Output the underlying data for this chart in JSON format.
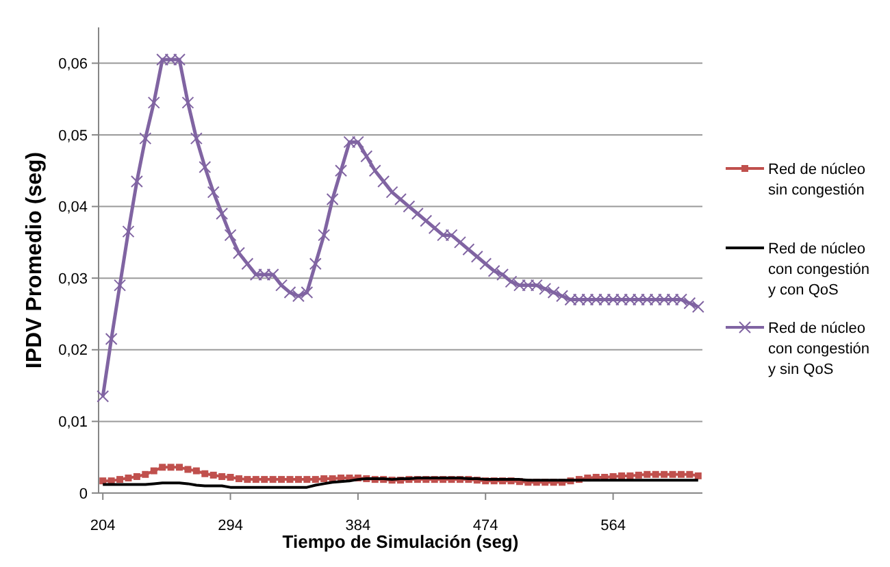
{
  "chart_data": {
    "type": "line",
    "xlabel": "Tiempo de Simulación  (seg)",
    "ylabel": "IPDV Promedio (seg)",
    "x": [
      204,
      210,
      216,
      222,
      228,
      234,
      240,
      246,
      252,
      258,
      264,
      270,
      276,
      282,
      288,
      294,
      300,
      306,
      312,
      318,
      324,
      330,
      336,
      342,
      348,
      354,
      360,
      366,
      372,
      378,
      384,
      390,
      396,
      402,
      408,
      414,
      420,
      426,
      432,
      438,
      444,
      450,
      456,
      462,
      468,
      474,
      480,
      486,
      492,
      498,
      504,
      510,
      516,
      522,
      528,
      534,
      540,
      546,
      552,
      558,
      564,
      570,
      576,
      582,
      588,
      594,
      600,
      606,
      612,
      618,
      624
    ],
    "xlim": [
      201,
      627
    ],
    "xticks": [
      204,
      294,
      384,
      474,
      564
    ],
    "ylim": [
      0,
      0.065
    ],
    "yticks": [
      0,
      {
        "value": 0.01,
        "label": "0,01"
      },
      {
        "value": 0.02,
        "label": "0,02"
      },
      {
        "value": 0.03,
        "label": "0,03"
      },
      {
        "value": 0.04,
        "label": "0,04"
      },
      {
        "value": 0.05,
        "label": "0,05"
      },
      {
        "value": 0.06,
        "label": "0,06"
      }
    ],
    "grid": "y",
    "legend": "right",
    "series": [
      {
        "name": "Red de núcleo sin congestión",
        "color": "#c0504d",
        "marker": "square",
        "values": [
          0.0017,
          0.0017,
          0.0019,
          0.0021,
          0.0023,
          0.0026,
          0.0031,
          0.0036,
          0.0036,
          0.0036,
          0.0033,
          0.0031,
          0.0027,
          0.0025,
          0.0023,
          0.0022,
          0.002,
          0.0019,
          0.0019,
          0.0019,
          0.0019,
          0.0019,
          0.0019,
          0.0019,
          0.0019,
          0.0019,
          0.002,
          0.002,
          0.0021,
          0.0021,
          0.0021,
          0.002,
          0.0019,
          0.0019,
          0.0018,
          0.0018,
          0.0019,
          0.0019,
          0.0019,
          0.0019,
          0.0019,
          0.0019,
          0.0019,
          0.0019,
          0.0018,
          0.0017,
          0.0017,
          0.0017,
          0.0017,
          0.0016,
          0.0015,
          0.0015,
          0.0015,
          0.0015,
          0.0015,
          0.0017,
          0.0019,
          0.0021,
          0.0022,
          0.0022,
          0.0023,
          0.0024,
          0.0024,
          0.0025,
          0.0026,
          0.0026,
          0.0026,
          0.0026,
          0.0026,
          0.0026,
          0.0024
        ]
      },
      {
        "name": "Red de núcleo con congestión y con QoS",
        "color": "#000000",
        "marker": "none",
        "values": [
          0.0012,
          0.0012,
          0.0012,
          0.0012,
          0.0012,
          0.0012,
          0.0013,
          0.0014,
          0.0014,
          0.0014,
          0.0013,
          0.0011,
          0.001,
          0.001,
          0.001,
          0.0008,
          0.0008,
          0.0008,
          0.0008,
          0.0008,
          0.0008,
          0.0008,
          0.0008,
          0.0008,
          0.0008,
          0.0011,
          0.0013,
          0.0015,
          0.0016,
          0.0017,
          0.0019,
          0.002,
          0.002,
          0.002,
          0.0019,
          0.002,
          0.002,
          0.0021,
          0.0021,
          0.0021,
          0.0021,
          0.0021,
          0.0021,
          0.002,
          0.002,
          0.0019,
          0.0019,
          0.0019,
          0.0019,
          0.0019,
          0.0018,
          0.0018,
          0.0018,
          0.0018,
          0.0018,
          0.0018,
          0.0018,
          0.0018,
          0.0018,
          0.0018,
          0.0018,
          0.0018,
          0.0018,
          0.0018,
          0.0018,
          0.0018,
          0.0018,
          0.0018,
          0.0018,
          0.0018,
          0.0018
        ]
      },
      {
        "name": "Red de núcleo con congestión y sin QoS",
        "color": "#8064a2",
        "marker": "cross",
        "values": [
          0.0135,
          0.0215,
          0.029,
          0.0365,
          0.0435,
          0.0495,
          0.0545,
          0.0605,
          0.0605,
          0.0605,
          0.0545,
          0.0495,
          0.0455,
          0.042,
          0.039,
          0.036,
          0.0335,
          0.032,
          0.0305,
          0.0305,
          0.0305,
          0.029,
          0.028,
          0.0275,
          0.028,
          0.032,
          0.036,
          0.041,
          0.045,
          0.049,
          0.049,
          0.047,
          0.045,
          0.0435,
          0.042,
          0.041,
          0.04,
          0.039,
          0.038,
          0.037,
          0.036,
          0.036,
          0.035,
          0.034,
          0.033,
          0.032,
          0.031,
          0.0305,
          0.0295,
          0.029,
          0.029,
          0.029,
          0.0285,
          0.028,
          0.0275,
          0.027,
          0.027,
          0.027,
          0.027,
          0.027,
          0.027,
          0.027,
          0.027,
          0.027,
          0.027,
          0.027,
          0.027,
          0.027,
          0.027,
          0.0265,
          0.026
        ]
      }
    ]
  }
}
